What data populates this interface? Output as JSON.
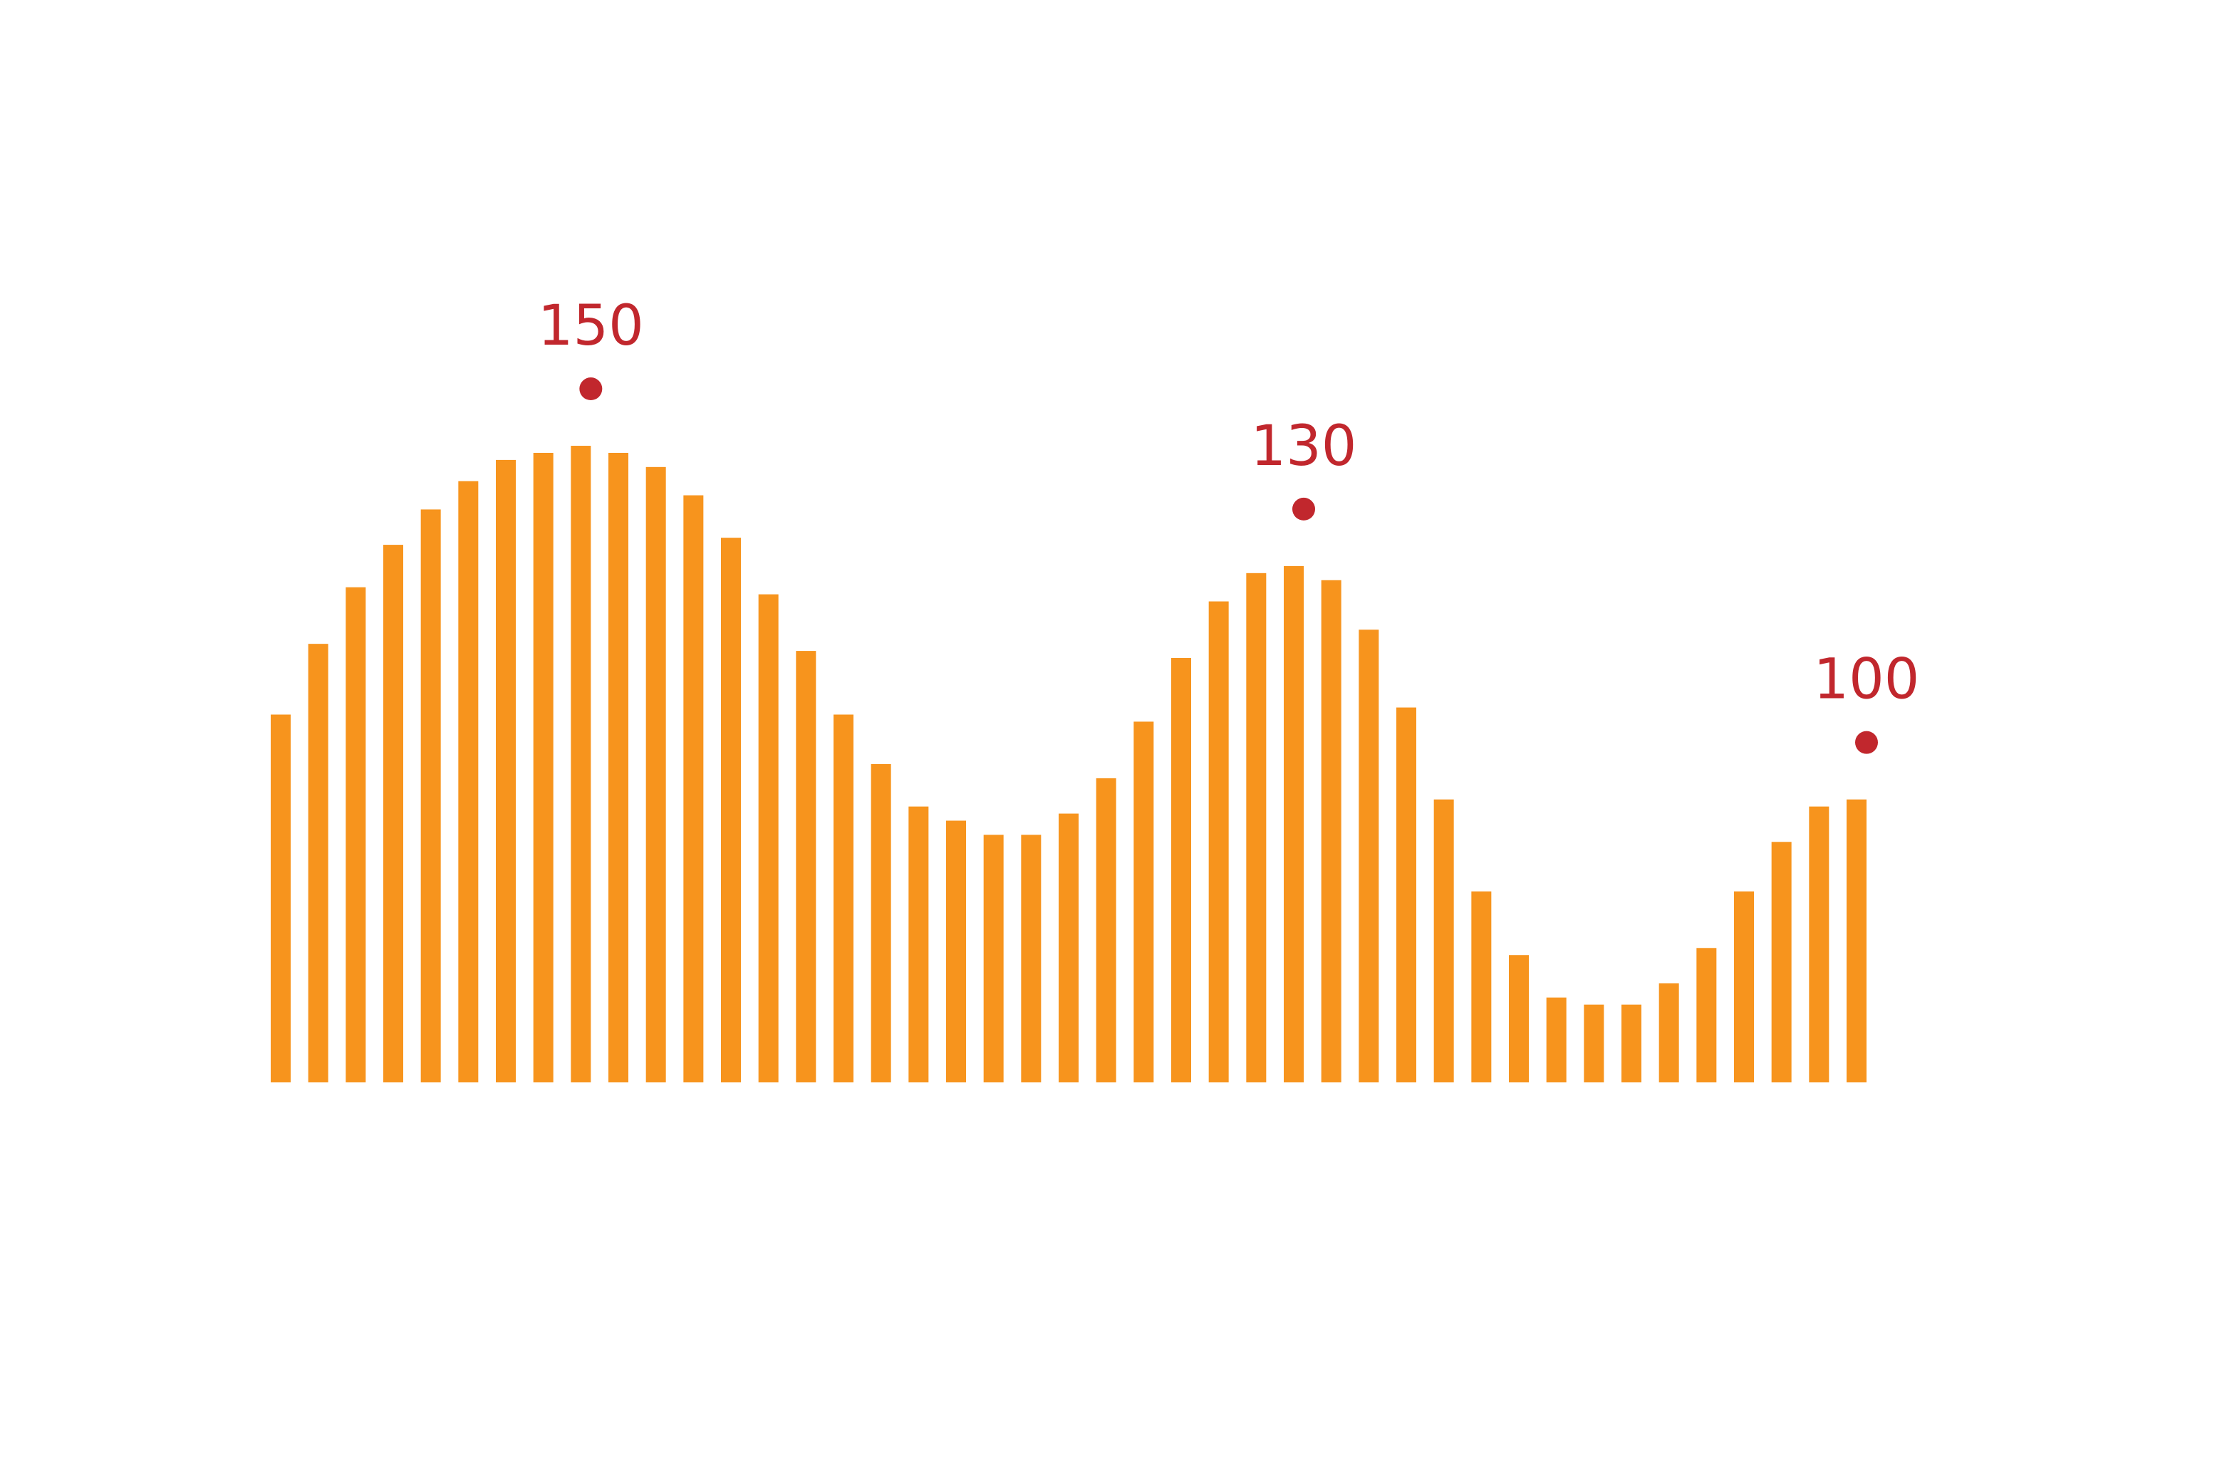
{
  "chart_data": {
    "type": "bar",
    "values": [
      112,
      122,
      130,
      136,
      141,
      145,
      148,
      149,
      150,
      149,
      147,
      143,
      137,
      129,
      121,
      112,
      105,
      99,
      97,
      95,
      95,
      98,
      103,
      111,
      120,
      128,
      132,
      133,
      131,
      124,
      113,
      100,
      87,
      78,
      72,
      71,
      71,
      74,
      79,
      87,
      94,
      99,
      100
    ],
    "color": "#f7941d",
    "ylim": [
      60,
      160
    ],
    "annotations": [
      {
        "x": 8,
        "value": 150,
        "color": "#c1272d"
      },
      {
        "x": 27,
        "value": 130,
        "color": "#c1272d"
      },
      {
        "x": 42,
        "value": 100,
        "color": "#c1272d"
      }
    ]
  }
}
